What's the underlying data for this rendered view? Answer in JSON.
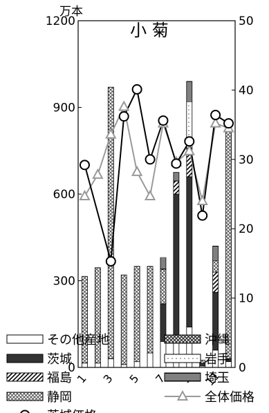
{
  "chart_data": {
    "type": "bar",
    "title": "小 菊",
    "ylabel": "万本",
    "y2label": "",
    "ylim": [
      0,
      1200
    ],
    "y2lim": [
      0,
      50
    ],
    "yticks": [
      "0",
      "300",
      "600",
      "900",
      "1200"
    ],
    "y2ticks": [
      "0",
      "10",
      "20",
      "30",
      "40",
      "50"
    ],
    "x": [
      1,
      2,
      3,
      4,
      5,
      6,
      7,
      8,
      9,
      10,
      11,
      12
    ],
    "xtick_labels": [
      "1",
      "3",
      "5",
      "7",
      "9",
      "11"
    ],
    "xtick_positions": [
      1,
      3,
      5,
      7,
      9,
      11
    ],
    "stacked": true,
    "series": [
      {
        "name": "その他産地",
        "key": "other",
        "values": [
          15,
          15,
          30,
          10,
          20,
          50,
          90,
          100,
          140,
          5,
          60,
          20
        ]
      },
      {
        "name": "茨城",
        "key": "ibaraki",
        "values": [
          0,
          0,
          0,
          0,
          0,
          0,
          130,
          500,
          520,
          10,
          200,
          10
        ]
      },
      {
        "name": "福島",
        "key": "fukushima",
        "values": [
          0,
          0,
          0,
          0,
          0,
          0,
          0,
          45,
          100,
          0,
          70,
          0
        ]
      },
      {
        "name": "静岡",
        "key": "shizuoka",
        "values": [
          300,
          330,
          940,
          310,
          330,
          300,
          120,
          0,
          0,
          10,
          40,
          790
        ]
      },
      {
        "name": "沖縄",
        "key": "okinawa",
        "values": [
          0,
          0,
          0,
          0,
          0,
          0,
          0,
          0,
          0,
          0,
          0,
          0
        ]
      },
      {
        "name": "岩手",
        "key": "iwate",
        "values": [
          0,
          0,
          0,
          0,
          0,
          0,
          0,
          0,
          160,
          0,
          0,
          0
        ]
      },
      {
        "name": "埼玉",
        "key": "saitama",
        "values": [
          0,
          0,
          0,
          0,
          0,
          0,
          40,
          30,
          70,
          0,
          50,
          0
        ]
      }
    ],
    "line_series": [
      {
        "name": "全体価格",
        "marker": "triangle",
        "color": "#999999",
        "values": [
          24.7,
          27.8,
          33.6,
          37.6,
          28.2,
          24.7,
          35.2,
          29.6,
          31.2,
          24.0,
          35.2,
          34.5
        ]
      },
      {
        "name": "茨城価格",
        "marker": "circle",
        "color": "#000000",
        "values": [
          29.2,
          null,
          15.3,
          36.2,
          40.1,
          30.0,
          35.6,
          29.4,
          32.6,
          21.9,
          36.4,
          35.2
        ]
      }
    ],
    "legend": [
      {
        "name": "その他産地",
        "pattern": "other"
      },
      {
        "name": "沖縄",
        "pattern": "okinawa"
      },
      {
        "name": "茨城",
        "pattern": "ibaraki"
      },
      {
        "name": "岩手",
        "pattern": "iwate"
      },
      {
        "name": "福島",
        "pattern": "fukushima"
      },
      {
        "name": "埼玉",
        "pattern": "saitama"
      },
      {
        "name": "静岡",
        "pattern": "shizuoka"
      },
      {
        "name": "全体価格",
        "pattern": "triangle"
      },
      {
        "name": "茨城価格",
        "pattern": "circle"
      }
    ],
    "legend_placement": "bottom-overlap",
    "grid": false
  }
}
